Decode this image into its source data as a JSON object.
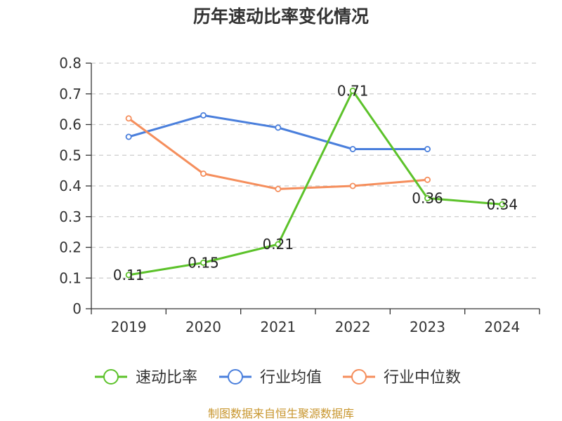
{
  "chart_data": {
    "type": "line",
    "title": "历年速动比率变化情况",
    "categories": [
      "2019",
      "2020",
      "2021",
      "2022",
      "2023",
      "2024"
    ],
    "y_ticks": [
      "0",
      "0.1",
      "0.2",
      "0.3",
      "0.4",
      "0.5",
      "0.6",
      "0.7",
      "0.8"
    ],
    "ylim": [
      0,
      0.8
    ],
    "grid": "horizontal-dashed",
    "legend_position": "bottom",
    "series": [
      {
        "name": "速动比率",
        "color": "#5cc22a",
        "values": [
          0.11,
          0.15,
          0.21,
          0.71,
          0.36,
          0.34
        ],
        "data_labels": [
          "0.11",
          "0.15",
          "0.21",
          "0.71",
          "0.36",
          "0.34"
        ]
      },
      {
        "name": "行业均值",
        "color": "#4a7fdc",
        "values": [
          0.56,
          0.63,
          0.59,
          0.52,
          0.52,
          null
        ]
      },
      {
        "name": "行业中位数",
        "color": "#f58e5c",
        "values": [
          0.62,
          0.44,
          0.39,
          0.4,
          0.42,
          null
        ]
      }
    ]
  },
  "source": "制图数据来自恒生聚源数据库"
}
